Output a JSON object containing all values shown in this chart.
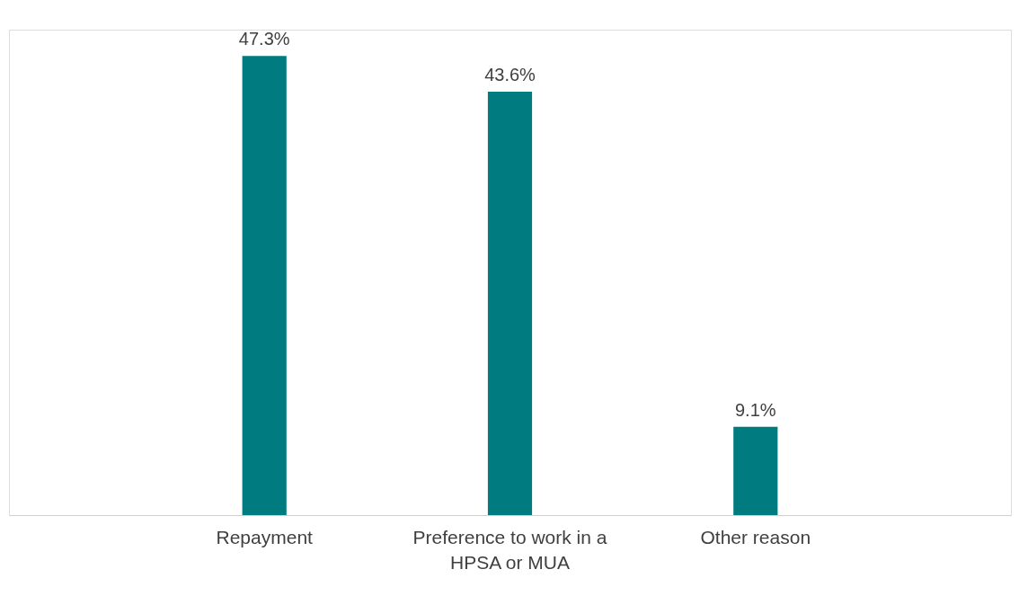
{
  "chart_data": {
    "type": "bar",
    "categories": [
      "Repayment",
      "Preference to work in a HPSA or MUA",
      "Other reason"
    ],
    "values": [
      47.3,
      43.6,
      9.1
    ],
    "color": "#007b80",
    "value_labels": [
      "47.3%",
      "43.6%",
      "9.1%"
    ],
    "grid": false
  }
}
